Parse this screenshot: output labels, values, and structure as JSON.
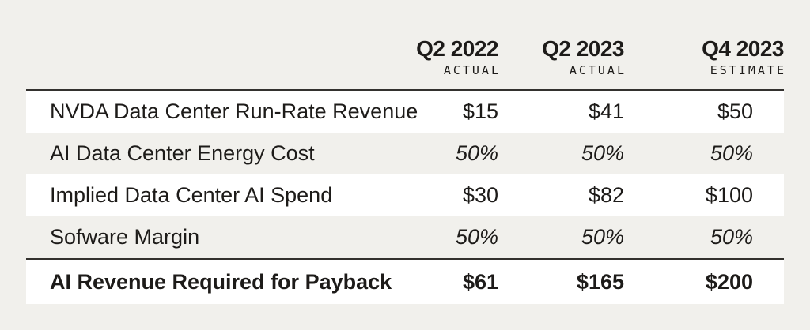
{
  "chart_data": {
    "type": "table",
    "columns": [
      {
        "period": "Q2 2022",
        "qualifier": "ACTUAL"
      },
      {
        "period": "Q2 2023",
        "qualifier": "ACTUAL"
      },
      {
        "period": "Q4 2023",
        "qualifier": "ESTIMATE"
      }
    ],
    "rows": [
      {
        "label": "NVDA Data Center Run-Rate Revenue",
        "values": [
          "$15",
          "$41",
          "$50"
        ]
      },
      {
        "label": "AI Data Center Energy Cost",
        "values": [
          "50%",
          "50%",
          "50%"
        ]
      },
      {
        "label": "Implied Data Center AI Spend",
        "values": [
          "$30",
          "$82",
          "$100"
        ]
      },
      {
        "label": "Sofware Margin",
        "values": [
          "50%",
          "50%",
          "50%"
        ]
      },
      {
        "label": "AI Revenue Required for Payback",
        "values": [
          "$61",
          "$165",
          "$200"
        ]
      }
    ],
    "layout_hints": {
      "value_alignment": "right",
      "italic_rows": [
        1,
        3
      ],
      "bold_total_row": 4,
      "striped_rows": [
        1,
        3
      ]
    }
  },
  "colors": {
    "page_background": "#f1f0ec",
    "row_highlight": "#ffffff",
    "text": "#1d1b19",
    "rule": "#33312e"
  }
}
